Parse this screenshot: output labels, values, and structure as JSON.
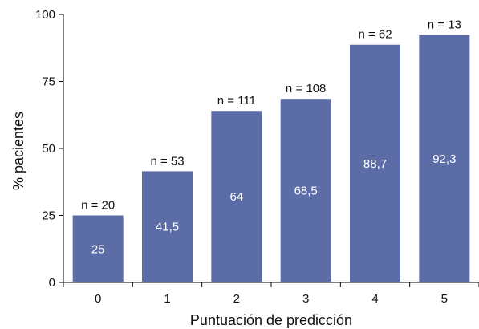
{
  "chart_data": {
    "type": "bar",
    "xlabel": "Puntuación de predicción",
    "ylabel": "% pacientes",
    "ylim": [
      0,
      100
    ],
    "yticks": [
      0,
      25,
      50,
      75,
      100
    ],
    "grid": false,
    "bar_color": "#5b6ca6",
    "categories": [
      "0",
      "1",
      "2",
      "3",
      "4",
      "5"
    ],
    "values": [
      25,
      41.5,
      64,
      68.5,
      88.7,
      92.3
    ],
    "value_labels": [
      "25",
      "41,5",
      "64",
      "68,5",
      "88,7",
      "92,3"
    ],
    "n_labels": [
      "n = 20",
      "n = 53",
      "n = 111",
      "n = 108",
      "n = 62",
      "n = 13"
    ]
  }
}
